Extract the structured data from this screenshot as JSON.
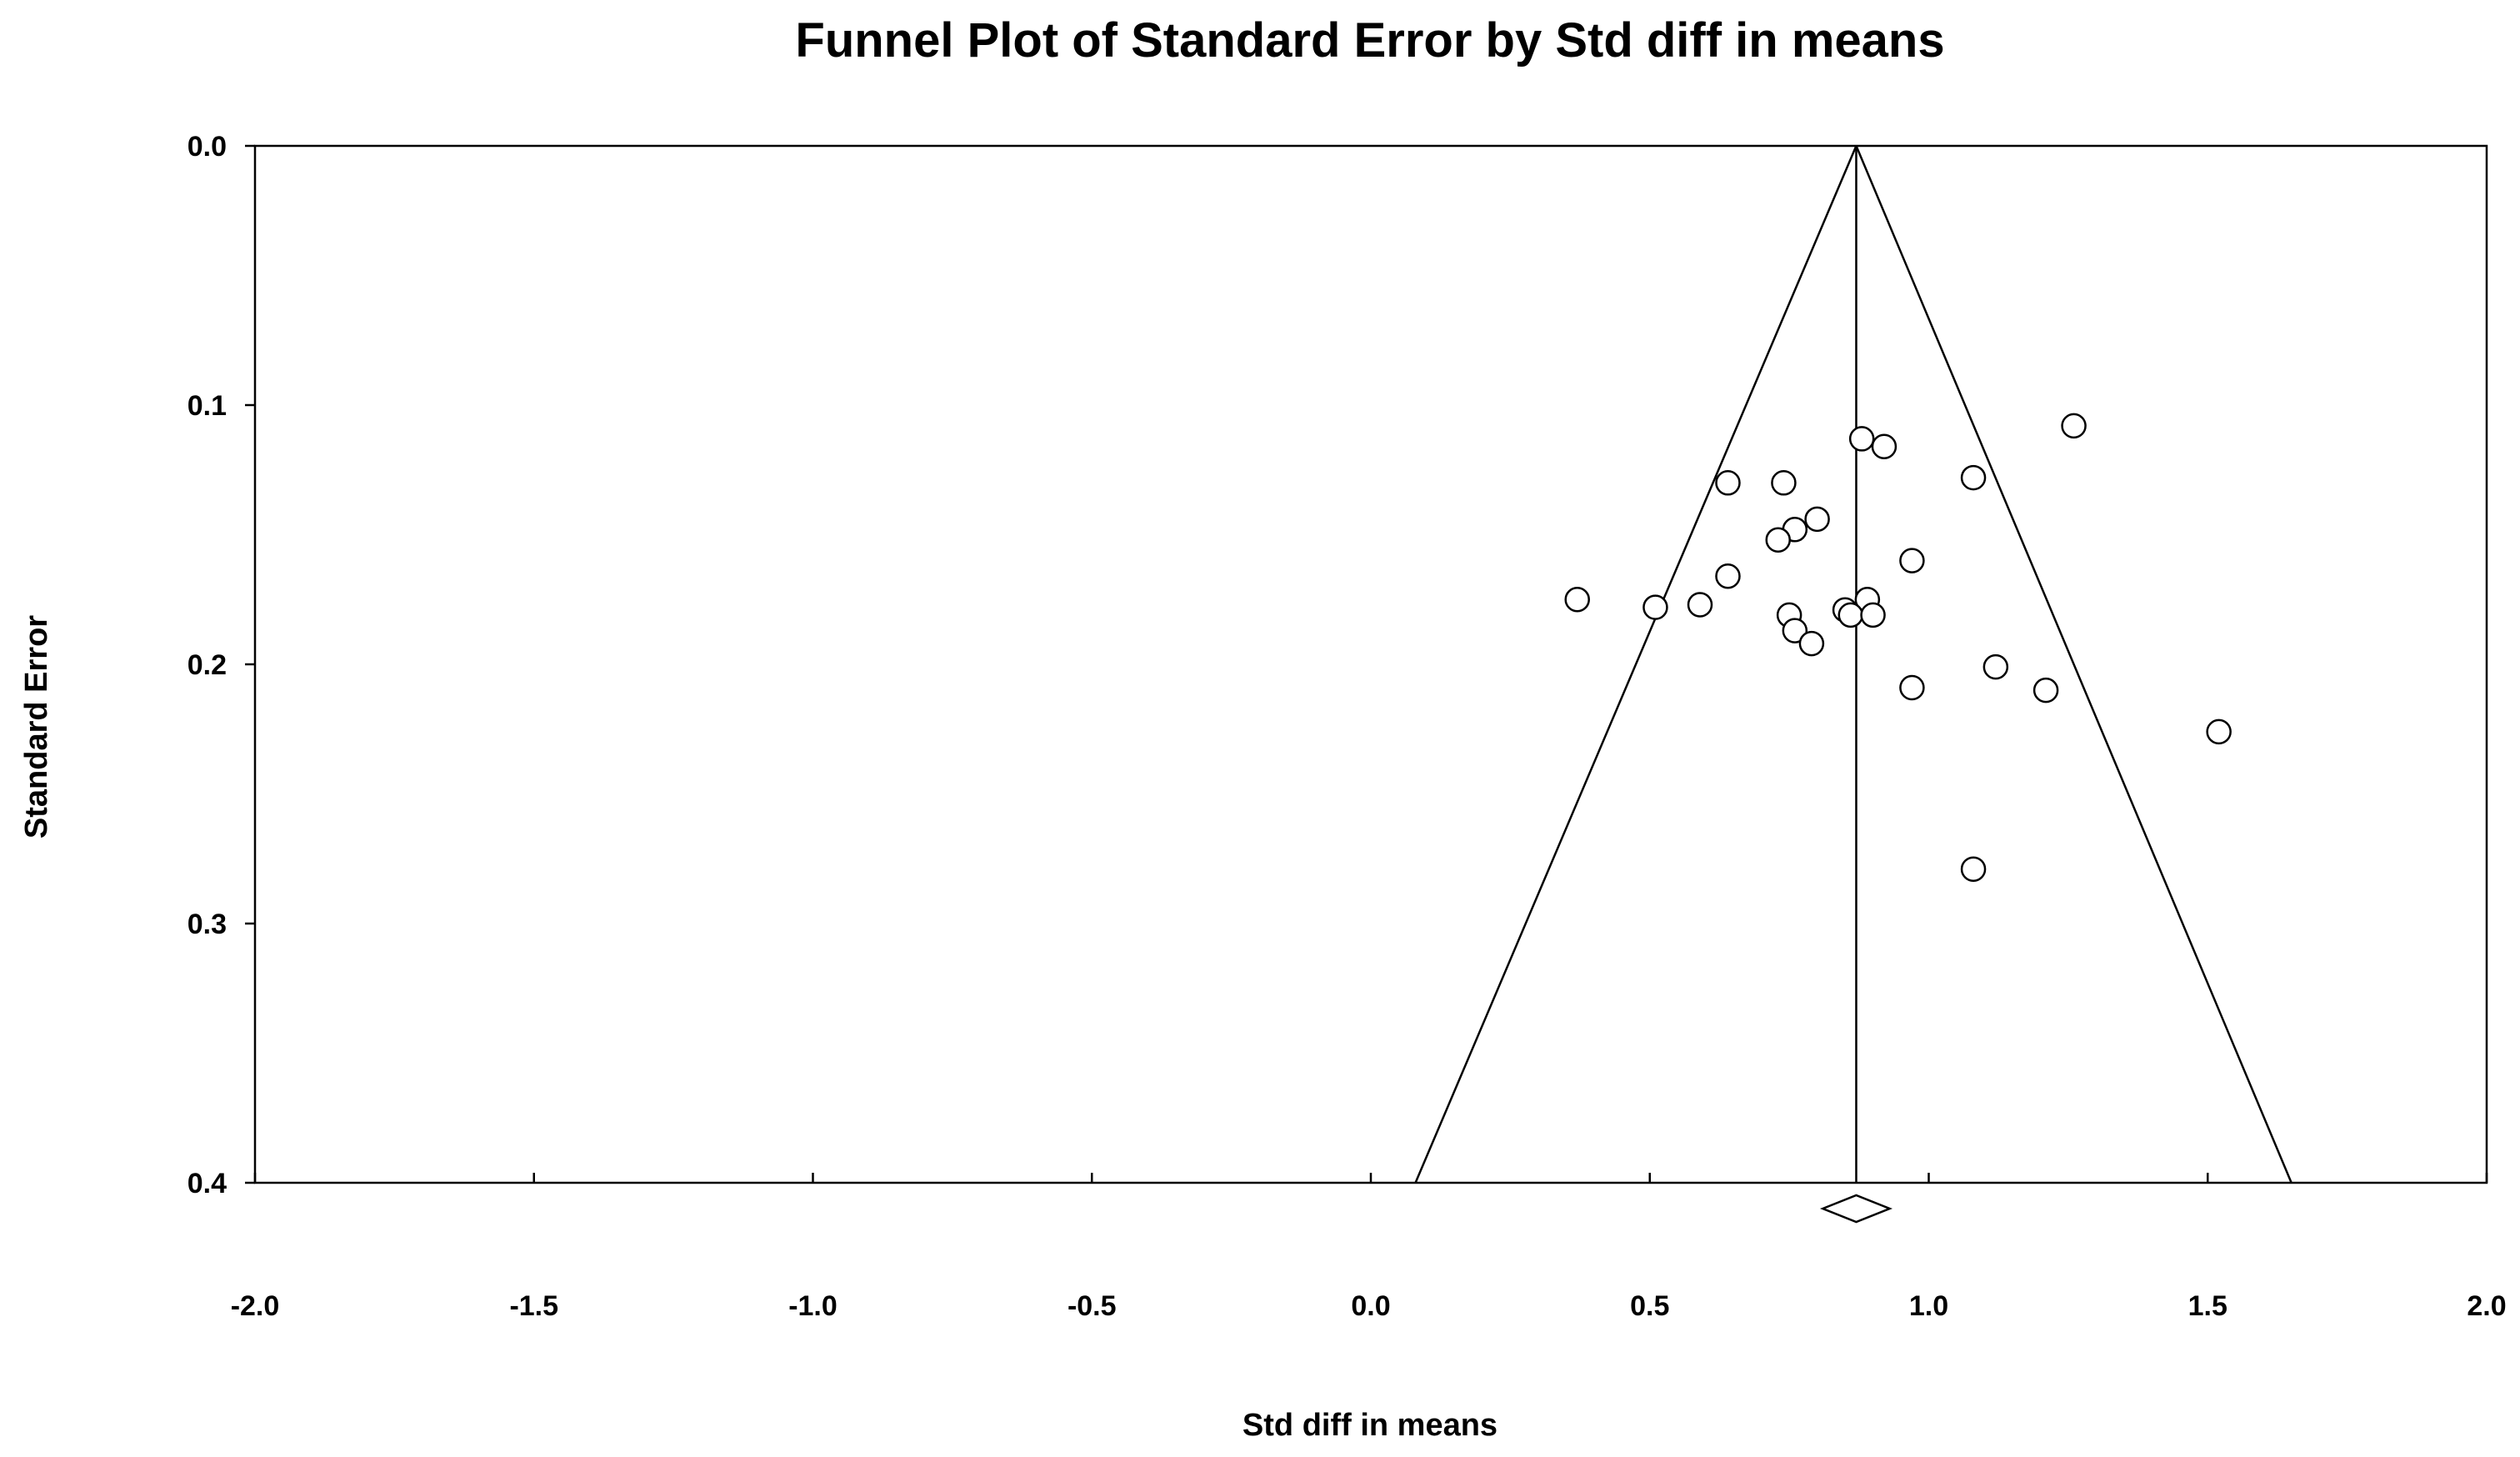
{
  "chart_data": {
    "type": "scatter",
    "title": "Funnel Plot of Standard Error by Std diff in means",
    "xlabel": "Std diff in means",
    "ylabel": "Standard Error",
    "xlim": [
      -2.0,
      2.0
    ],
    "ylim": [
      0.0,
      0.4
    ],
    "y_inverted": true,
    "grid": false,
    "legend": "none",
    "x_ticks": [
      "-2.0",
      "-1.5",
      "-1.0",
      "-0.5",
      "0.0",
      "0.5",
      "1.0",
      "1.5",
      "2.0"
    ],
    "y_ticks": [
      "0.0",
      "0.1",
      "0.2",
      "0.3",
      "0.4"
    ],
    "summary_effect": 0.87,
    "summary_ci": [
      0.81,
      0.93
    ],
    "funnel_limits_at_max_se": [
      0.08,
      1.65
    ],
    "points": [
      {
        "x": 1.26,
        "y": 0.108
      },
      {
        "x": 0.88,
        "y": 0.113
      },
      {
        "x": 0.92,
        "y": 0.116
      },
      {
        "x": 0.64,
        "y": 0.13
      },
      {
        "x": 0.74,
        "y": 0.13
      },
      {
        "x": 1.08,
        "y": 0.128
      },
      {
        "x": 0.8,
        "y": 0.144
      },
      {
        "x": 0.76,
        "y": 0.148
      },
      {
        "x": 0.73,
        "y": 0.152
      },
      {
        "x": 0.97,
        "y": 0.16
      },
      {
        "x": 0.64,
        "y": 0.166
      },
      {
        "x": 0.37,
        "y": 0.175
      },
      {
        "x": 0.51,
        "y": 0.178
      },
      {
        "x": 0.59,
        "y": 0.177
      },
      {
        "x": 0.89,
        "y": 0.175
      },
      {
        "x": 0.85,
        "y": 0.179
      },
      {
        "x": 0.86,
        "y": 0.181
      },
      {
        "x": 0.9,
        "y": 0.181
      },
      {
        "x": 0.75,
        "y": 0.181
      },
      {
        "x": 0.76,
        "y": 0.187
      },
      {
        "x": 0.79,
        "y": 0.192
      },
      {
        "x": 1.12,
        "y": 0.201
      },
      {
        "x": 0.97,
        "y": 0.209
      },
      {
        "x": 1.21,
        "y": 0.21
      },
      {
        "x": 1.52,
        "y": 0.226
      },
      {
        "x": 1.08,
        "y": 0.279
      }
    ]
  }
}
